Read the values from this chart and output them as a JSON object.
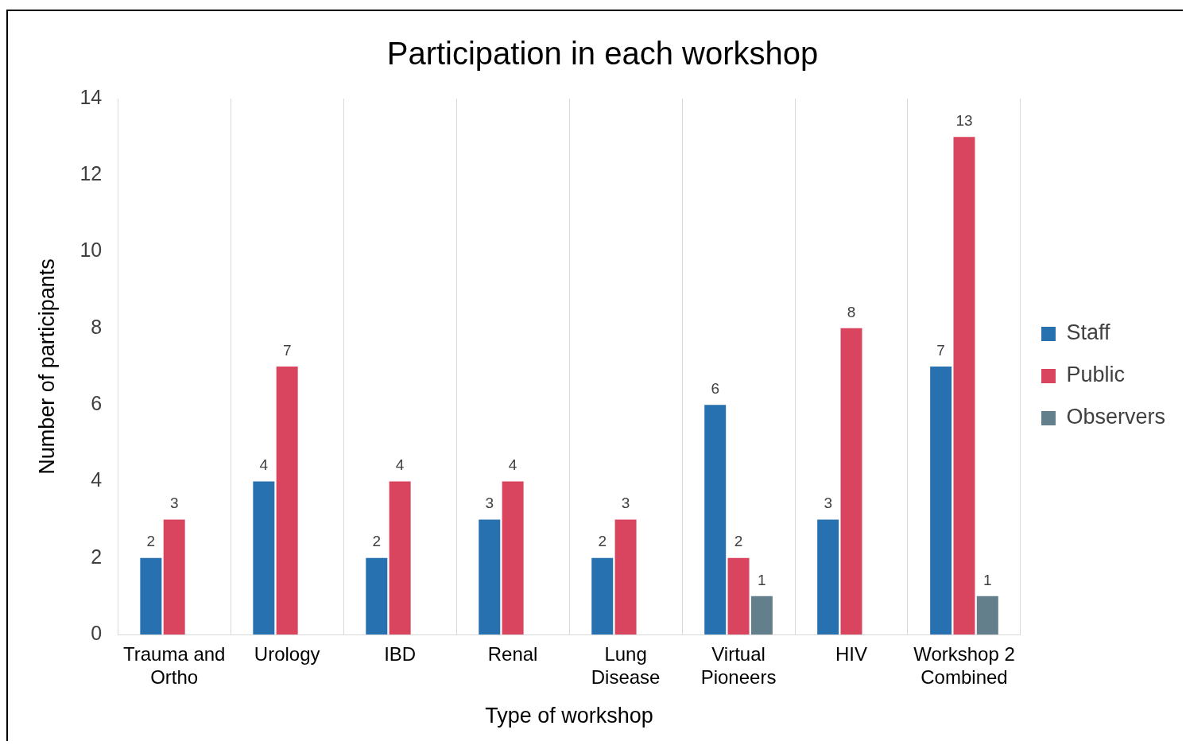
{
  "chart_data": {
    "type": "bar",
    "title": "Participation in each workshop",
    "xlabel": "Type of workshop",
    "ylabel": "Number of participants",
    "categories": [
      "Trauma and Ortho",
      "Urology",
      "IBD",
      "Renal",
      "Lung Disease",
      "Virtual Pioneers",
      "HIV",
      "Workshop 2 Combined"
    ],
    "series": [
      {
        "name": "Staff",
        "color": "#2771b0",
        "values": [
          2,
          4,
          2,
          3,
          2,
          6,
          3,
          7
        ]
      },
      {
        "name": "Public",
        "color": "#d9455f",
        "values": [
          3,
          7,
          4,
          4,
          3,
          2,
          8,
          13
        ]
      },
      {
        "name": "Observers",
        "color": "#647f8c",
        "values": [
          null,
          null,
          null,
          null,
          null,
          1,
          null,
          1
        ]
      }
    ],
    "ylim": [
      0,
      14
    ],
    "yticks": [
      0,
      2,
      4,
      6,
      8,
      10,
      12,
      14
    ],
    "grid": "x",
    "legend": "right",
    "data_labels": true
  }
}
